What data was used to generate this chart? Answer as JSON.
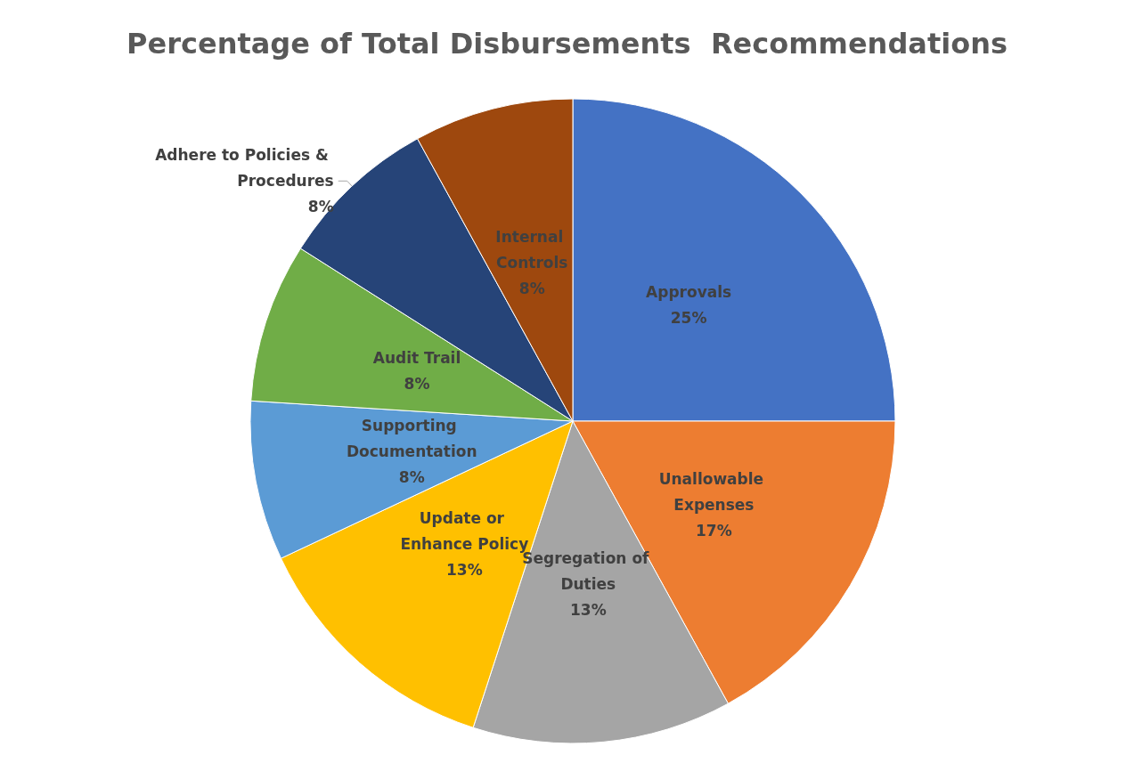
{
  "chart_data": {
    "type": "pie",
    "title": "Percentage of Total Disbursements  Recommendations",
    "categories": [
      "Approvals",
      "Unallowable Expenses",
      "Segregation of Duties",
      "Update or Enhance Policy",
      "Supporting Documentation",
      "Audit Trail",
      "Adhere to Policies & Procedures",
      "Internal Controls"
    ],
    "values": [
      25,
      17,
      13,
      13,
      8,
      8,
      8,
      8
    ],
    "value_labels": [
      "25%",
      "17%",
      "13%",
      "13%",
      "8%",
      "8%",
      "8%",
      "8%"
    ],
    "colors": [
      "#4472c4",
      "#ed7d31",
      "#a5a5a5",
      "#ffc000",
      "#5b9bd5",
      "#70ad47",
      "#264478",
      "#9e480e"
    ],
    "legend": false
  }
}
